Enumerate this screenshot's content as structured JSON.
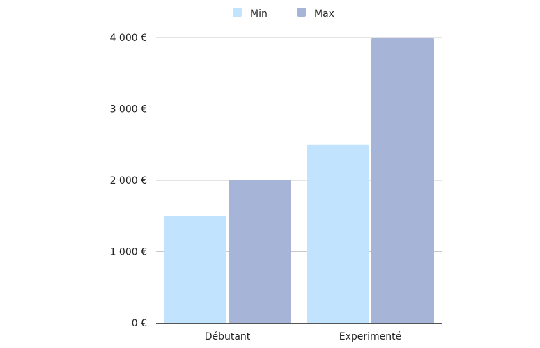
{
  "chart_data": {
    "type": "bar",
    "categories": [
      "Débutant",
      "Experimenté"
    ],
    "series": [
      {
        "name": "Min",
        "values": [
          1500,
          2500
        ],
        "color": "#c2e3fd"
      },
      {
        "name": "Max",
        "values": [
          2000,
          4000
        ],
        "color": "#a6b4d8"
      }
    ],
    "y_ticks": [
      0,
      1000,
      2000,
      3000,
      4000
    ],
    "y_tick_labels": [
      "0 €",
      "1 000 €",
      "2 000 €",
      "3 000 €",
      "4 000 €"
    ],
    "ylim": [
      0,
      4000
    ],
    "grid": true,
    "legend_position": "top-center",
    "colors": {
      "gridline": "#c8c8c8",
      "baseline": "#555555"
    }
  }
}
